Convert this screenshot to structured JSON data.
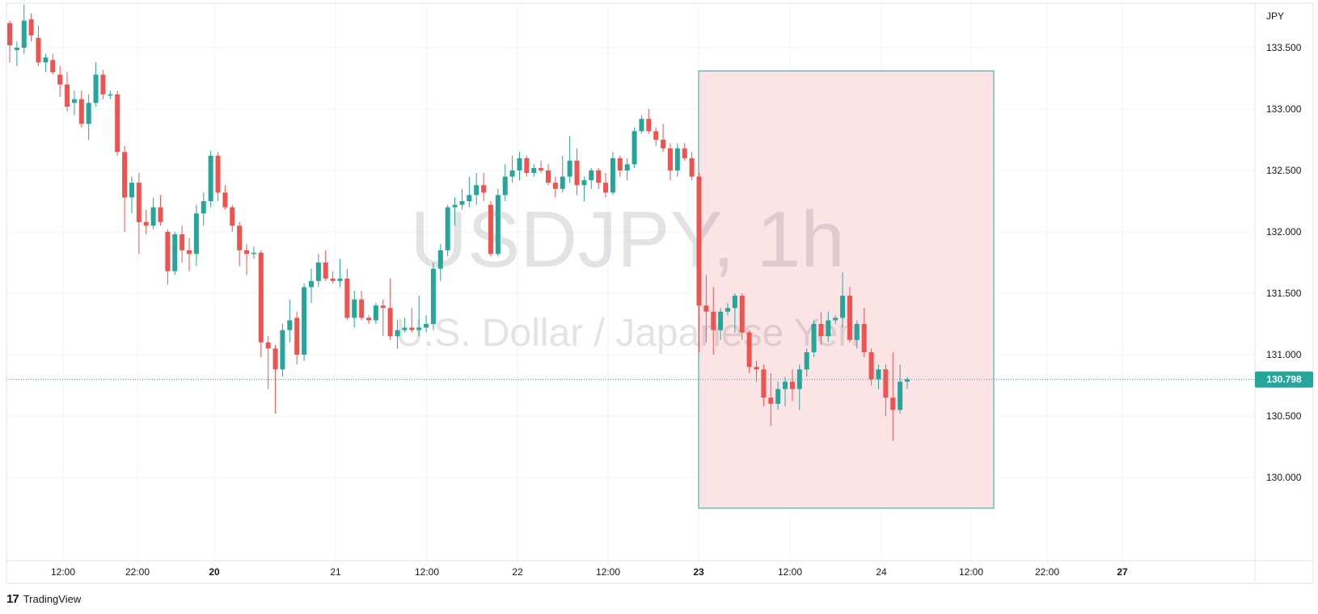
{
  "watermark": {
    "symbol": "USDJPY, 1h",
    "description": "U.S. Dollar / Japanese Yen"
  },
  "currency": "JPY",
  "last_price": "130.798",
  "brand": {
    "logo_icon": "tradingview-logo-icon",
    "logo_text": "17",
    "name": "TradingView"
  },
  "colors": {
    "up": "#26a69a",
    "down": "#ef5350",
    "highlight_fill": "#fce4e6",
    "highlight_border": "#26a69a",
    "last_price_bg": "#26a69a",
    "grid": "#f0f3fa"
  },
  "chart_data": {
    "type": "candlestick",
    "interval": "1h",
    "y_axis": {
      "ticks": [
        "133.500",
        "133.000",
        "132.500",
        "132.000",
        "131.500",
        "131.000",
        "130.500",
        "130.000"
      ],
      "position": "right"
    },
    "x_axis": {
      "ticks": [
        {
          "label": "12:00",
          "bold": false
        },
        {
          "label": "22:00",
          "bold": false
        },
        {
          "label": "20",
          "bold": true
        },
        {
          "label": "21",
          "bold": false
        },
        {
          "label": "12:00",
          "bold": false
        },
        {
          "label": "22",
          "bold": false
        },
        {
          "label": "12:00",
          "bold": false
        },
        {
          "label": "23",
          "bold": true
        },
        {
          "label": "12:00",
          "bold": false
        },
        {
          "label": "24",
          "bold": false
        },
        {
          "label": "12:00",
          "bold": false
        },
        {
          "label": "22:00",
          "bold": false
        },
        {
          "label": "27",
          "bold": true
        }
      ]
    },
    "highlight_box": {
      "y_top": 133.31,
      "y_bottom": 129.75
    },
    "ohlc": [
      [
        133.7,
        133.72,
        133.38,
        133.52
      ],
      [
        133.48,
        133.55,
        133.35,
        133.5
      ],
      [
        133.5,
        133.85,
        133.45,
        133.72
      ],
      [
        133.73,
        133.78,
        133.55,
        133.6
      ],
      [
        133.58,
        133.68,
        133.35,
        133.38
      ],
      [
        133.38,
        133.45,
        133.3,
        133.42
      ],
      [
        133.4,
        133.45,
        133.28,
        133.3
      ],
      [
        133.28,
        133.35,
        133.1,
        133.2
      ],
      [
        133.2,
        133.3,
        132.98,
        133.02
      ],
      [
        133.05,
        133.15,
        132.95,
        133.08
      ],
      [
        133.08,
        133.15,
        132.85,
        132.88
      ],
      [
        132.88,
        133.12,
        132.75,
        133.05
      ],
      [
        133.05,
        133.38,
        133.02,
        133.28
      ],
      [
        133.28,
        133.32,
        133.08,
        133.12
      ],
      [
        133.12,
        133.15,
        133.08,
        133.12
      ],
      [
        133.12,
        133.15,
        132.62,
        132.65
      ],
      [
        132.65,
        132.7,
        132.0,
        132.28
      ],
      [
        132.28,
        132.45,
        132.15,
        132.4
      ],
      [
        132.4,
        132.48,
        131.82,
        132.08
      ],
      [
        132.08,
        132.18,
        131.98,
        132.05
      ],
      [
        132.05,
        132.28,
        132.02,
        132.2
      ],
      [
        132.2,
        132.3,
        132.05,
        132.08
      ],
      [
        132.0,
        132.02,
        131.57,
        131.68
      ],
      [
        131.68,
        132.0,
        131.65,
        131.98
      ],
      [
        131.98,
        132.05,
        131.75,
        131.85
      ],
      [
        131.85,
        131.95,
        131.68,
        131.82
      ],
      [
        131.82,
        132.22,
        131.72,
        132.15
      ],
      [
        132.15,
        132.32,
        132.05,
        132.25
      ],
      [
        132.25,
        132.66,
        132.2,
        132.62
      ],
      [
        132.62,
        132.65,
        132.25,
        132.32
      ],
      [
        132.32,
        132.38,
        132.18,
        132.2
      ],
      [
        132.2,
        132.22,
        132.0,
        132.05
      ],
      [
        132.05,
        132.08,
        131.72,
        131.85
      ],
      [
        131.85,
        131.9,
        131.65,
        131.82
      ],
      [
        131.82,
        131.88,
        131.78,
        131.83
      ],
      [
        131.83,
        131.85,
        130.98,
        131.1
      ],
      [
        131.1,
        131.15,
        130.72,
        131.05
      ],
      [
        131.05,
        131.08,
        130.52,
        130.88
      ],
      [
        130.88,
        131.25,
        130.82,
        131.2
      ],
      [
        131.2,
        131.45,
        131.1,
        131.28
      ],
      [
        131.3,
        131.35,
        130.92,
        131.0
      ],
      [
        131.0,
        131.58,
        130.95,
        131.55
      ],
      [
        131.55,
        131.7,
        131.42,
        131.6
      ],
      [
        131.6,
        131.82,
        131.55,
        131.75
      ],
      [
        131.75,
        131.85,
        131.6,
        131.62
      ],
      [
        131.62,
        131.68,
        131.58,
        131.6
      ],
      [
        131.6,
        131.78,
        131.55,
        131.62
      ],
      [
        131.62,
        131.7,
        131.28,
        131.3
      ],
      [
        131.3,
        131.52,
        131.22,
        131.45
      ],
      [
        131.45,
        131.52,
        131.28,
        131.3
      ],
      [
        131.3,
        131.32,
        131.25,
        131.28
      ],
      [
        131.28,
        131.42,
        131.25,
        131.4
      ],
      [
        131.4,
        131.45,
        131.15,
        131.38
      ],
      [
        131.38,
        131.62,
        131.12,
        131.15
      ],
      [
        131.15,
        131.28,
        131.05,
        131.2
      ],
      [
        131.2,
        131.3,
        131.18,
        131.22
      ],
      [
        131.22,
        131.38,
        131.18,
        131.2
      ],
      [
        131.2,
        131.48,
        131.15,
        131.22
      ],
      [
        131.22,
        131.32,
        131.18,
        131.25
      ],
      [
        131.25,
        131.75,
        131.2,
        131.7
      ],
      [
        131.7,
        131.9,
        131.6,
        131.85
      ],
      [
        131.85,
        132.22,
        131.8,
        132.2
      ],
      [
        132.2,
        132.28,
        132.05,
        132.22
      ],
      [
        132.22,
        132.35,
        132.18,
        132.25
      ],
      [
        132.25,
        132.45,
        132.2,
        132.3
      ],
      [
        132.3,
        132.48,
        132.22,
        132.38
      ],
      [
        132.38,
        132.48,
        132.25,
        132.32
      ],
      [
        132.22,
        132.25,
        131.8,
        131.82
      ],
      [
        131.82,
        132.35,
        131.8,
        132.3
      ],
      [
        132.3,
        132.55,
        132.25,
        132.45
      ],
      [
        132.45,
        132.62,
        132.4,
        132.5
      ],
      [
        132.5,
        132.65,
        132.42,
        132.6
      ],
      [
        132.6,
        132.62,
        132.45,
        132.48
      ],
      [
        132.48,
        132.55,
        132.45,
        132.52
      ],
      [
        132.52,
        132.58,
        132.48,
        132.5
      ],
      [
        132.5,
        132.55,
        132.38,
        132.4
      ],
      [
        132.4,
        132.45,
        132.28,
        132.35
      ],
      [
        132.35,
        132.62,
        132.32,
        132.45
      ],
      [
        132.45,
        132.78,
        132.4,
        132.58
      ],
      [
        132.58,
        132.68,
        132.3,
        132.38
      ],
      [
        132.38,
        132.45,
        132.25,
        132.42
      ],
      [
        132.42,
        132.52,
        132.35,
        132.5
      ],
      [
        132.5,
        132.52,
        132.35,
        132.4
      ],
      [
        132.4,
        132.48,
        132.28,
        132.32
      ],
      [
        132.32,
        132.65,
        132.3,
        132.6
      ],
      [
        132.6,
        132.62,
        132.45,
        132.5
      ],
      [
        132.5,
        132.6,
        132.42,
        132.55
      ],
      [
        132.55,
        132.85,
        132.52,
        132.82
      ],
      [
        132.82,
        132.95,
        132.8,
        132.92
      ],
      [
        132.92,
        133.0,
        132.8,
        132.82
      ],
      [
        132.82,
        132.85,
        132.7,
        132.75
      ],
      [
        132.75,
        132.88,
        132.65,
        132.68
      ],
      [
        132.68,
        132.72,
        132.42,
        132.5
      ],
      [
        132.5,
        132.72,
        132.45,
        132.68
      ],
      [
        132.68,
        132.72,
        132.58,
        132.6
      ],
      [
        132.6,
        132.65,
        132.42,
        132.45
      ],
      [
        132.45,
        132.48,
        131.02,
        131.4
      ],
      [
        131.4,
        131.65,
        131.1,
        131.35
      ],
      [
        131.35,
        131.55,
        131.0,
        131.2
      ],
      [
        131.2,
        131.38,
        131.12,
        131.35
      ],
      [
        131.35,
        131.42,
        131.32,
        131.38
      ],
      [
        131.38,
        131.5,
        131.18,
        131.48
      ],
      [
        131.48,
        131.5,
        131.12,
        131.18
      ],
      [
        131.18,
        131.2,
        130.85,
        130.9
      ],
      [
        130.9,
        130.95,
        130.78,
        130.88
      ],
      [
        130.88,
        130.92,
        130.58,
        130.65
      ],
      [
        130.65,
        130.85,
        130.42,
        130.6
      ],
      [
        130.6,
        130.78,
        130.55,
        130.72
      ],
      [
        130.72,
        130.82,
        130.58,
        130.78
      ],
      [
        130.78,
        130.88,
        130.62,
        130.72
      ],
      [
        130.72,
        130.92,
        130.55,
        130.88
      ],
      [
        130.88,
        131.05,
        130.82,
        131.02
      ],
      [
        131.02,
        131.28,
        130.98,
        131.25
      ],
      [
        131.25,
        131.35,
        131.08,
        131.15
      ],
      [
        131.15,
        131.35,
        131.1,
        131.28
      ],
      [
        131.28,
        131.32,
        131.25,
        131.3
      ],
      [
        131.3,
        131.67,
        131.22,
        131.48
      ],
      [
        131.48,
        131.55,
        131.1,
        131.12
      ],
      [
        131.12,
        131.28,
        131.05,
        131.25
      ],
      [
        131.25,
        131.38,
        130.98,
        131.02
      ],
      [
        131.02,
        131.05,
        130.75,
        130.8
      ],
      [
        130.8,
        130.92,
        130.72,
        130.88
      ],
      [
        130.88,
        130.92,
        130.5,
        130.65
      ],
      [
        130.65,
        131.02,
        130.3,
        130.55
      ],
      [
        130.55,
        130.92,
        130.52,
        130.78
      ],
      [
        130.78,
        130.82,
        130.72,
        130.8
      ]
    ]
  }
}
